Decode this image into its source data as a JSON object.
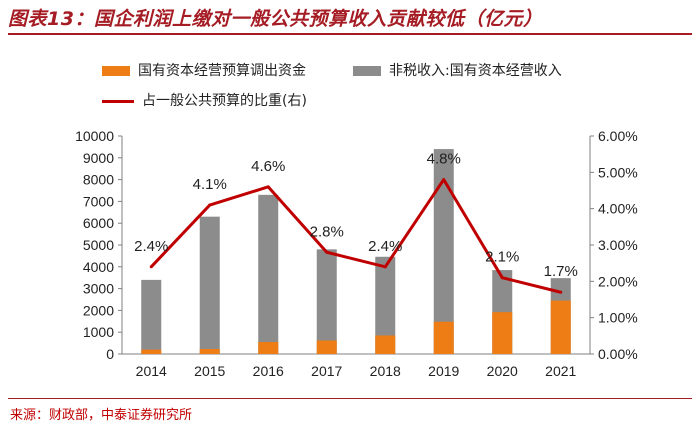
{
  "figure": {
    "title": "图表13：国企利润上缴对一般公共预算收入贡献较低（亿元）",
    "source": "来源：财政部，中泰证券研究所"
  },
  "colors": {
    "accent": "#a51c24",
    "bar_orange": "#ed7d14",
    "bar_gray": "#8c8c8c",
    "line": "#c00000"
  },
  "legend": {
    "orange_label": "国有资本经营预算调出资金",
    "gray_label": "非税收入:国有资本经营收入",
    "line_label": "占一般公共预算的比重(右)"
  },
  "chart_data": {
    "type": "bar",
    "title": "国企利润上缴对一般公共预算收入贡献较低（亿元）",
    "categories": [
      "2014",
      "2015",
      "2016",
      "2017",
      "2018",
      "2019",
      "2020",
      "2021"
    ],
    "series": [
      {
        "name": "国有资本经营预算调出资金",
        "kind": "bar",
        "axis": "left",
        "values": [
          200,
          230,
          550,
          620,
          850,
          1480,
          1920,
          2450
        ]
      },
      {
        "name": "非税收入:国有资本经营收入",
        "kind": "bar",
        "axis": "left",
        "values": [
          3400,
          6300,
          7300,
          4800,
          4460,
          9400,
          3850,
          3480
        ]
      },
      {
        "name": "占一般公共预算的比重(右)",
        "kind": "line",
        "axis": "right",
        "values": [
          2.4,
          4.1,
          4.6,
          2.8,
          2.4,
          4.8,
          2.1,
          1.7
        ]
      }
    ],
    "line_labels": [
      "2.4%",
      "4.1%",
      "4.6%",
      "2.8%",
      "2.4%",
      "4.8%",
      "2.1%",
      "1.7%"
    ],
    "ylim": [
      0,
      10000
    ],
    "y2lim": [
      0,
      6
    ],
    "yticks": [
      "0",
      "1000",
      "2000",
      "3000",
      "4000",
      "5000",
      "6000",
      "7000",
      "8000",
      "9000",
      "10000"
    ],
    "y2ticks": [
      "0.00%",
      "1.00%",
      "2.00%",
      "3.00%",
      "4.00%",
      "5.00%",
      "6.00%"
    ],
    "xlabel": "",
    "ylabel": ""
  }
}
